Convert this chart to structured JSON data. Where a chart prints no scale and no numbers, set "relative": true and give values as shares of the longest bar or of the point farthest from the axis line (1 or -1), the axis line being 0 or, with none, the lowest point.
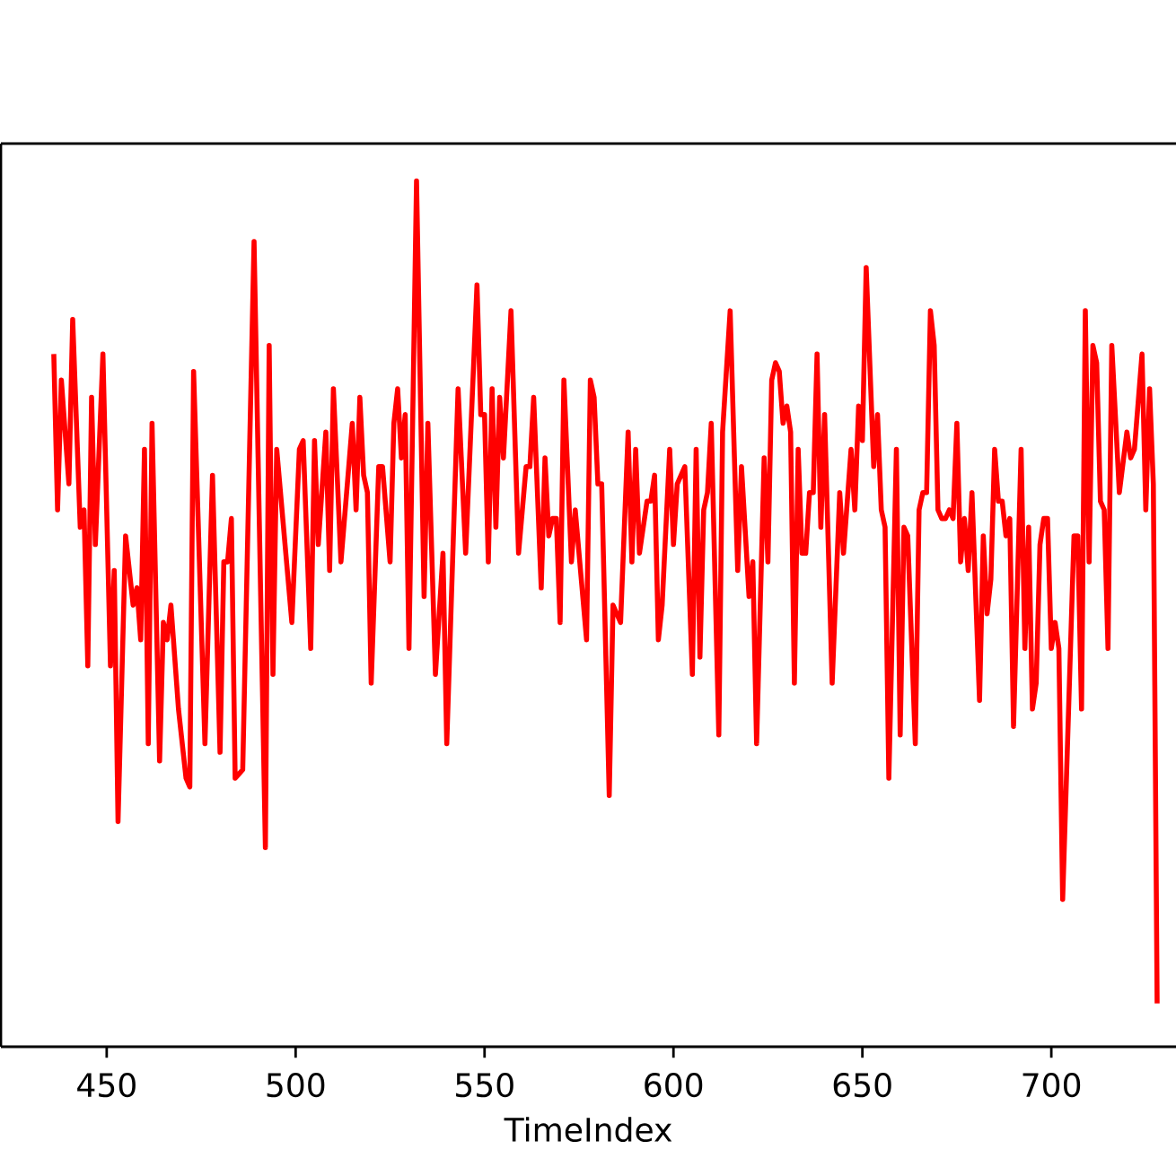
{
  "chart_data": {
    "type": "line",
    "xlabel": "TimeIndex",
    "relative": true,
    "color": "#ff0000",
    "xlim": [
      422,
      733
    ],
    "xticks": [
      450,
      500,
      550,
      600,
      650,
      700
    ],
    "x": [
      436,
      437,
      438,
      440,
      441,
      443,
      444,
      445,
      446,
      447,
      449,
      451,
      452,
      453,
      455,
      457,
      458,
      459,
      460,
      461,
      462,
      464,
      465,
      466,
      467,
      469,
      471,
      472,
      473,
      476,
      478,
      480,
      481,
      482,
      483,
      484,
      486,
      489,
      492,
      493,
      494,
      495,
      499,
      501,
      502,
      504,
      505,
      506,
      508,
      509,
      510,
      512,
      515,
      516,
      517,
      518,
      519,
      520,
      522,
      523,
      525,
      526,
      527,
      528,
      529,
      530,
      532,
      534,
      535,
      537,
      539,
      540,
      543,
      545,
      548,
      549,
      550,
      551,
      552,
      553,
      554,
      555,
      557,
      559,
      561,
      562,
      563,
      565,
      566,
      567,
      568,
      569,
      570,
      571,
      573,
      574,
      577,
      578,
      579,
      580,
      581,
      583,
      584,
      586,
      588,
      589,
      590,
      591,
      593,
      594,
      595,
      596,
      597,
      599,
      600,
      601,
      603,
      605,
      606,
      607,
      608,
      609,
      610,
      612,
      613,
      615,
      617,
      618,
      620,
      621,
      622,
      624,
      625,
      626,
      627,
      628,
      629,
      630,
      631,
      632,
      633,
      634,
      635,
      636,
      637,
      638,
      639,
      640,
      642,
      644,
      645,
      647,
      648,
      649,
      650,
      651,
      653,
      654,
      655,
      656,
      657,
      659,
      660,
      661,
      662,
      664,
      665,
      666,
      667,
      668,
      669,
      670,
      671,
      672,
      673,
      674,
      675,
      676,
      677,
      678,
      679,
      681,
      682,
      683,
      684,
      685,
      686,
      687,
      688,
      689,
      690,
      692,
      693,
      694,
      695,
      696,
      697,
      698,
      699,
      700,
      701,
      702,
      703,
      706,
      707,
      708,
      709,
      710,
      711,
      712,
      713,
      714,
      715,
      716,
      718,
      720,
      721,
      722,
      724,
      725,
      726,
      727,
      728
    ],
    "values": [
      0.8,
      0.62,
      0.77,
      0.65,
      0.84,
      0.6,
      0.62,
      0.44,
      0.75,
      0.58,
      0.8,
      0.44,
      0.55,
      0.26,
      0.59,
      0.51,
      0.53,
      0.47,
      0.69,
      0.35,
      0.72,
      0.33,
      0.49,
      0.47,
      0.51,
      0.39,
      0.31,
      0.3,
      0.78,
      0.35,
      0.66,
      0.34,
      0.56,
      0.56,
      0.61,
      0.31,
      0.32,
      0.93,
      0.23,
      0.81,
      0.43,
      0.69,
      0.49,
      0.69,
      0.7,
      0.46,
      0.7,
      0.58,
      0.71,
      0.55,
      0.76,
      0.56,
      0.72,
      0.62,
      0.75,
      0.66,
      0.64,
      0.42,
      0.67,
      0.67,
      0.56,
      0.72,
      0.76,
      0.68,
      0.73,
      0.46,
      1.0,
      0.52,
      0.72,
      0.43,
      0.57,
      0.35,
      0.76,
      0.57,
      0.88,
      0.73,
      0.73,
      0.56,
      0.76,
      0.6,
      0.75,
      0.68,
      0.85,
      0.57,
      0.67,
      0.67,
      0.75,
      0.53,
      0.68,
      0.59,
      0.61,
      0.61,
      0.49,
      0.77,
      0.56,
      0.62,
      0.47,
      0.77,
      0.75,
      0.65,
      0.65,
      0.29,
      0.51,
      0.49,
      0.71,
      0.56,
      0.69,
      0.57,
      0.63,
      0.63,
      0.66,
      0.47,
      0.51,
      0.69,
      0.58,
      0.65,
      0.67,
      0.43,
      0.69,
      0.45,
      0.62,
      0.64,
      0.72,
      0.36,
      0.71,
      0.85,
      0.55,
      0.67,
      0.52,
      0.56,
      0.35,
      0.68,
      0.56,
      0.77,
      0.79,
      0.78,
      0.72,
      0.74,
      0.71,
      0.42,
      0.69,
      0.57,
      0.57,
      0.64,
      0.64,
      0.8,
      0.6,
      0.73,
      0.42,
      0.64,
      0.57,
      0.69,
      0.62,
      0.74,
      0.7,
      0.9,
      0.67,
      0.73,
      0.62,
      0.6,
      0.31,
      0.69,
      0.36,
      0.6,
      0.59,
      0.35,
      0.62,
      0.64,
      0.64,
      0.85,
      0.81,
      0.62,
      0.61,
      0.61,
      0.62,
      0.61,
      0.72,
      0.56,
      0.61,
      0.55,
      0.64,
      0.4,
      0.59,
      0.5,
      0.54,
      0.69,
      0.63,
      0.63,
      0.59,
      0.61,
      0.37,
      0.69,
      0.46,
      0.6,
      0.39,
      0.42,
      0.58,
      0.61,
      0.61,
      0.46,
      0.49,
      0.46,
      0.17,
      0.59,
      0.59,
      0.39,
      0.85,
      0.56,
      0.81,
      0.79,
      0.63,
      0.62,
      0.46,
      0.81,
      0.64,
      0.71,
      0.68,
      0.69,
      0.8,
      0.62,
      0.76,
      0.65,
      0.05
    ]
  }
}
